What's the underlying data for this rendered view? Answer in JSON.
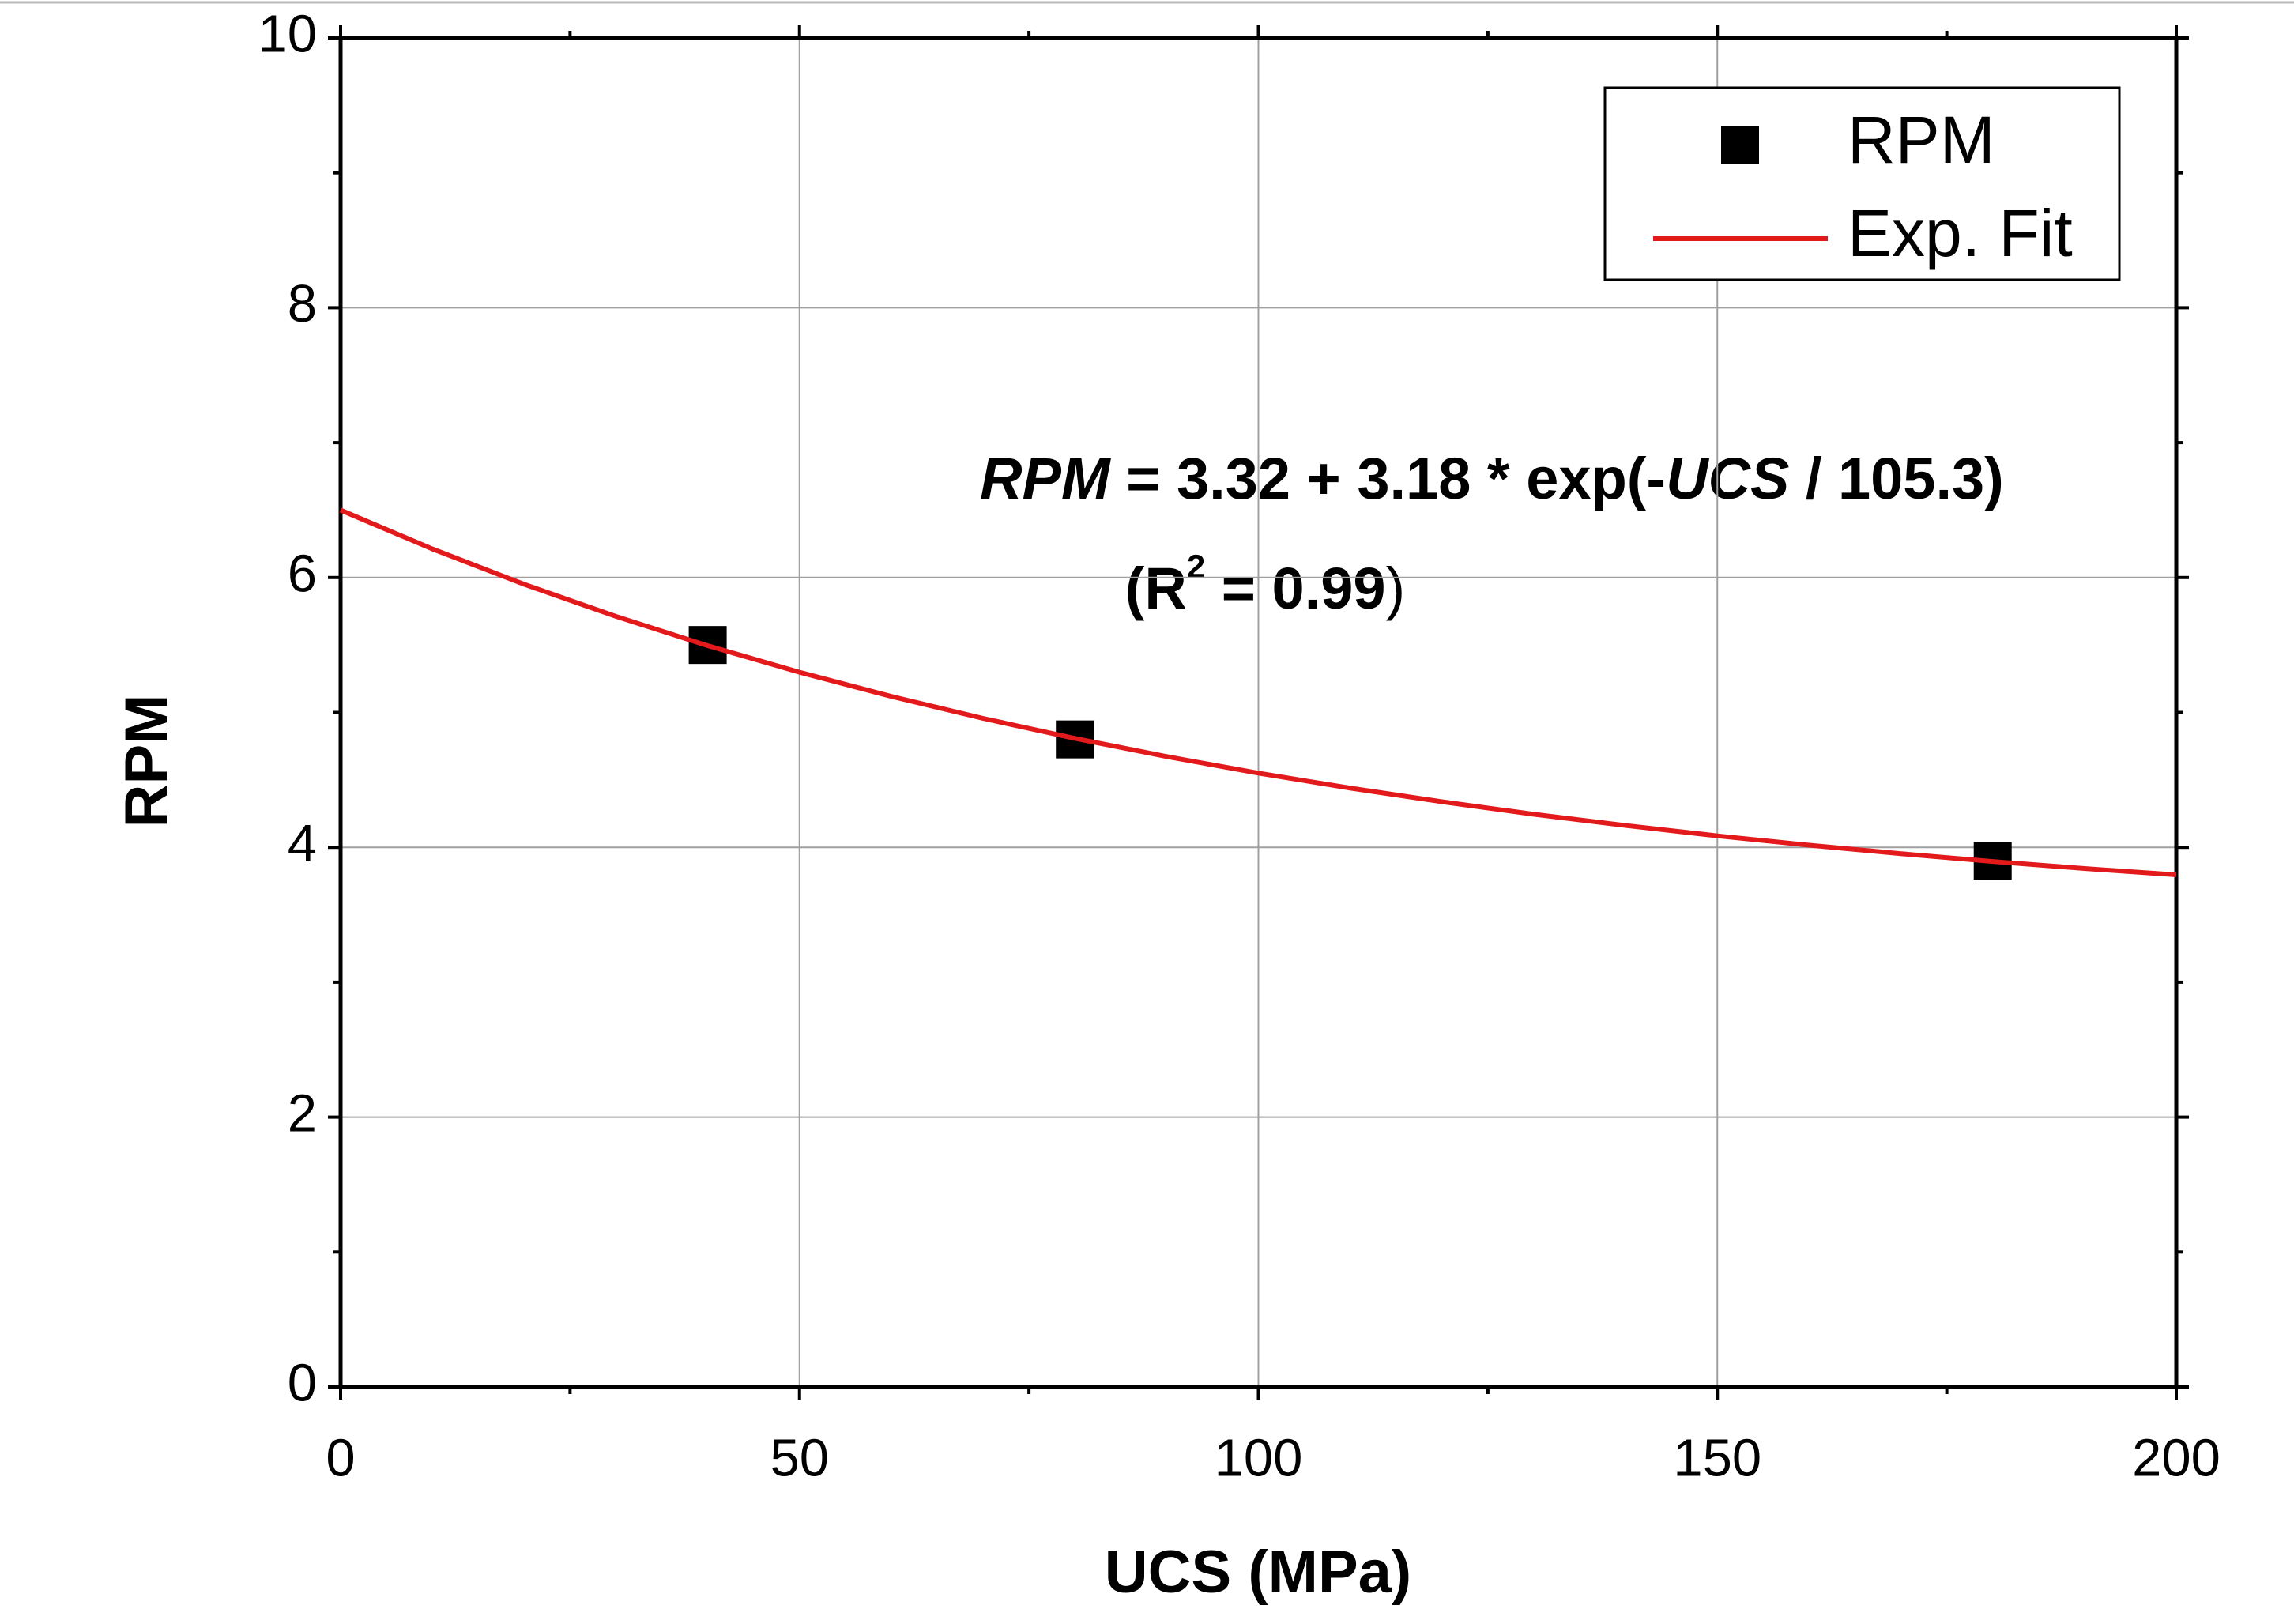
{
  "chart_data": {
    "type": "scatter",
    "x_label": "UCS (MPa)",
    "y_label": "RPM",
    "xlim": [
      0,
      200
    ],
    "ylim": [
      0,
      10
    ],
    "xticks": [
      0,
      50,
      100,
      150,
      200
    ],
    "yticks": [
      0,
      2,
      4,
      6,
      8,
      10
    ],
    "x_minor_ticks": [
      25,
      75,
      125,
      175
    ],
    "y_minor_ticks": [
      1,
      3,
      5,
      7,
      9
    ],
    "grid": true,
    "legend": "upper right",
    "equation_parts": [
      "RPM",
      " = 3.32 + 3.18 * exp(-",
      "UCS",
      " / 105.3)"
    ],
    "r_squared_parts": [
      "(R",
      "2",
      " = 0.99",
      ")"
    ],
    "series": [
      {
        "name": "RPM",
        "type": "scatter",
        "color": "#000000",
        "x": [
          40,
          80,
          180
        ],
        "values": [
          5.5,
          4.8,
          3.9
        ]
      },
      {
        "name": "Exp. Fit",
        "type": "line",
        "color": "#e31a1c",
        "x": [
          0,
          10,
          20,
          30,
          40,
          50,
          60,
          70,
          80,
          90,
          100,
          110,
          120,
          130,
          140,
          150,
          160,
          170,
          180,
          190,
          200
        ],
        "values": [
          6.5,
          6.212,
          5.95,
          5.712,
          5.495,
          5.298,
          5.119,
          4.956,
          4.808,
          4.673,
          4.55,
          4.439,
          4.338,
          4.245,
          4.162,
          4.085,
          4.016,
          3.953,
          3.895,
          3.843,
          3.796
        ]
      }
    ]
  }
}
